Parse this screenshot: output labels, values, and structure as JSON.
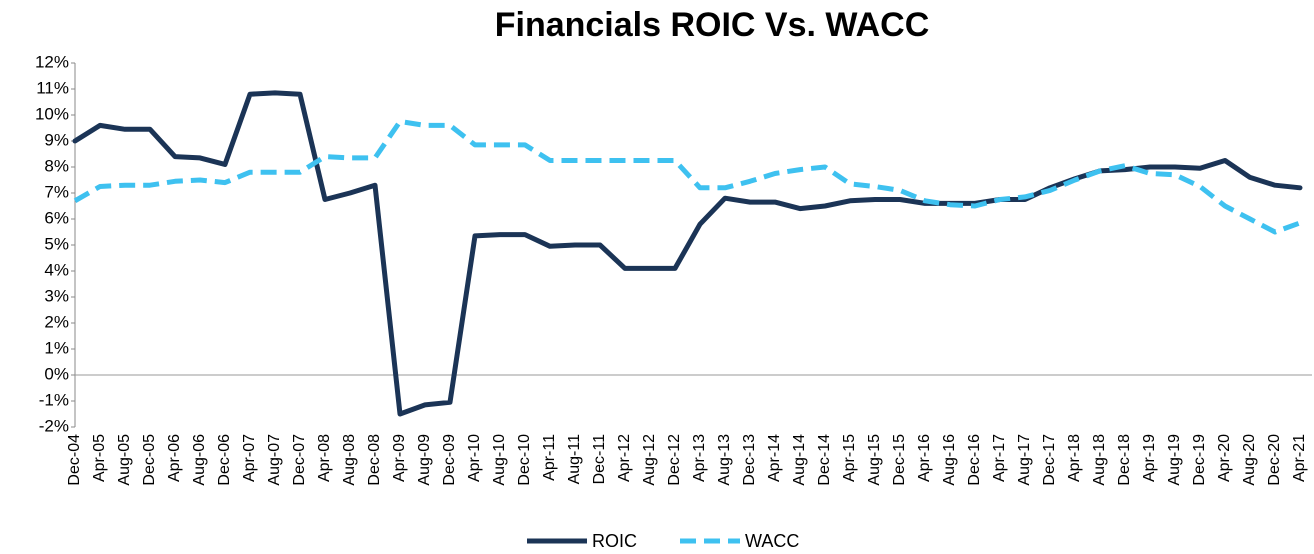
{
  "chart_data": {
    "type": "line",
    "title": "Financials ROIC Vs. WACC",
    "categories": [
      "Dec-04",
      "Apr-05",
      "Aug-05",
      "Dec-05",
      "Apr-06",
      "Aug-06",
      "Dec-06",
      "Apr-07",
      "Aug-07",
      "Dec-07",
      "Apr-08",
      "Aug-08",
      "Dec-08",
      "Apr-09",
      "Aug-09",
      "Dec-09",
      "Apr-10",
      "Aug-10",
      "Dec-10",
      "Apr-11",
      "Aug-11",
      "Dec-11",
      "Apr-12",
      "Aug-12",
      "Dec-12",
      "Apr-13",
      "Aug-13",
      "Dec-13",
      "Apr-14",
      "Aug-14",
      "Dec-14",
      "Apr-15",
      "Aug-15",
      "Dec-15",
      "Apr-16",
      "Aug-16",
      "Dec-16",
      "Apr-17",
      "Aug-17",
      "Dec-17",
      "Apr-18",
      "Aug-18",
      "Dec-18",
      "Apr-19",
      "Aug-19",
      "Dec-19",
      "Apr-20",
      "Aug-20",
      "Dec-20",
      "Apr-21"
    ],
    "series": [
      {
        "name": "ROIC",
        "color": "#1b3456",
        "dashed": false,
        "values": [
          9.0,
          9.6,
          9.45,
          9.45,
          8.4,
          8.35,
          8.1,
          10.8,
          10.85,
          10.8,
          6.75,
          7.0,
          7.3,
          -1.5,
          -1.15,
          -1.05,
          5.35,
          5.4,
          5.4,
          4.95,
          5.0,
          5.0,
          4.1,
          4.1,
          4.1,
          5.8,
          6.8,
          6.65,
          6.65,
          6.4,
          6.5,
          6.7,
          6.75,
          6.75,
          6.6,
          6.6,
          6.6,
          6.75,
          6.75,
          7.2,
          7.55,
          7.85,
          7.9,
          8.0,
          8.0,
          7.95,
          8.25,
          7.6,
          7.3,
          7.2
        ]
      },
      {
        "name": "WACC",
        "color": "#3ec1f0",
        "dashed": true,
        "values": [
          6.7,
          7.25,
          7.3,
          7.3,
          7.45,
          7.5,
          7.4,
          7.8,
          7.8,
          7.8,
          8.4,
          8.35,
          8.35,
          9.75,
          9.6,
          9.6,
          8.85,
          8.85,
          8.85,
          8.25,
          8.25,
          8.25,
          8.25,
          8.25,
          8.25,
          7.2,
          7.2,
          7.45,
          7.75,
          7.9,
          8.0,
          7.35,
          7.25,
          7.1,
          6.7,
          6.55,
          6.5,
          6.75,
          6.85,
          7.1,
          7.5,
          7.85,
          8.05,
          7.75,
          7.7,
          7.25,
          6.5,
          6.0,
          5.5,
          5.85
        ]
      }
    ],
    "ylim": [
      -2,
      12
    ],
    "yticks": [
      {
        "value": -2,
        "label": "-2%"
      },
      {
        "value": -1,
        "label": "-1%"
      },
      {
        "value": 0,
        "label": "0%"
      },
      {
        "value": 1,
        "label": "1%"
      },
      {
        "value": 2,
        "label": "2%"
      },
      {
        "value": 3,
        "label": "3%"
      },
      {
        "value": 4,
        "label": "4%"
      },
      {
        "value": 5,
        "label": "5%"
      },
      {
        "value": 6,
        "label": "6%"
      },
      {
        "value": 7,
        "label": "7%"
      },
      {
        "value": 8,
        "label": "8%"
      },
      {
        "value": 9,
        "label": "9%"
      },
      {
        "value": 10,
        "label": "10%"
      },
      {
        "value": 11,
        "label": "11%"
      },
      {
        "value": 12,
        "label": "12%"
      }
    ],
    "grid": false,
    "legend": "bottom"
  }
}
